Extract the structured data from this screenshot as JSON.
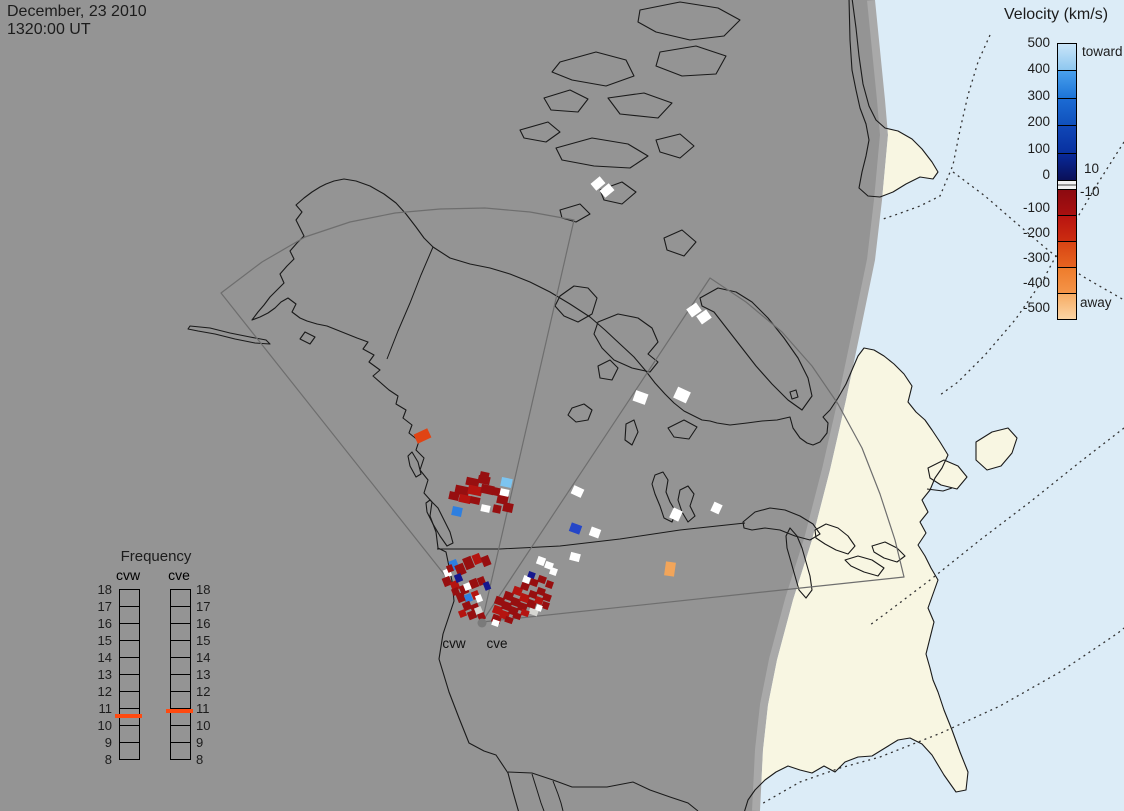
{
  "title_block": {
    "date": "December, 23 2010",
    "time": "1320:00 UT"
  },
  "velocity_legend": {
    "title": "Velocity (km/s)",
    "toward_label": "toward",
    "away_label": "away",
    "gap_upper_label": "10",
    "gap_lower_label": "-10",
    "ticks": [
      "500",
      "400",
      "300",
      "200",
      "100",
      "0",
      "-100",
      "-200",
      "-300",
      "-400",
      "-500"
    ],
    "toward_segments": [
      [
        "#c9e5f9",
        "#8ec7ef"
      ],
      [
        "#49a0ec",
        "#1c74d8"
      ],
      [
        "#1b6bd3",
        "#1050bc"
      ],
      [
        "#1047b7",
        "#08309f"
      ],
      [
        "#082a9a",
        "#0a1058"
      ]
    ],
    "away_segments": [
      [
        "#8c0a10",
        "#a81010"
      ],
      [
        "#b81410",
        "#cc2c10"
      ],
      [
        "#d84414",
        "#e66420"
      ],
      [
        "#ee7c2c",
        "#f49448"
      ],
      [
        "#f7ac64",
        "#fbd4a4"
      ]
    ],
    "gap_color": "#f2f2f2",
    "gap_line_color": "#9a9a9a"
  },
  "frequency_legend": {
    "title": "Frequency",
    "columns": [
      {
        "label": "cvw",
        "marker_value": 10.55
      },
      {
        "label": "cve",
        "marker_value": 10.8
      }
    ],
    "ticks": [
      "18",
      "17",
      "16",
      "15",
      "14",
      "13",
      "12",
      "11",
      "10",
      "9",
      "8"
    ],
    "scale_min": 8,
    "scale_max": 18,
    "marker_color": "#ff4a10"
  },
  "radar_sites": {
    "west_label": "cvw",
    "east_label": "cve"
  },
  "map_colors": {
    "night": "#949494",
    "twilight": "#a9a9a9",
    "ocean_day": "#dcecf7",
    "land_day": "#f8f6e2",
    "coast": "#1a1a1a",
    "fov": "#6e6e6e",
    "dotted": "#333333",
    "radar_dot": "#7a7a7a"
  },
  "cell_palette": {
    "dk": "#970f10",
    "rd": "#b51410",
    "wh": "#ffffff",
    "sv": "#d6d6d2",
    "lb": "#7cc4f0",
    "bb": "#2e7fe0",
    "db": "#2546c8",
    "nv": "#16188e",
    "or": "#f2a55a",
    "ro": "#e04414"
  },
  "echo_cells": [
    [
      466,
      478,
      13,
      8,
      "dk",
      12
    ],
    [
      478,
      476,
      12,
      8,
      "dk",
      12
    ],
    [
      455,
      486,
      14,
      9,
      "dk",
      12
    ],
    [
      468,
      486,
      14,
      9,
      "rd",
      12
    ],
    [
      481,
      485,
      13,
      9,
      "dk",
      12
    ],
    [
      493,
      488,
      10,
      8,
      "dk",
      12
    ],
    [
      449,
      492,
      10,
      8,
      "dk",
      12
    ],
    [
      459,
      495,
      12,
      8,
      "rd",
      12
    ],
    [
      470,
      497,
      10,
      7,
      "dk",
      12
    ],
    [
      497,
      495,
      11,
      9,
      "dk",
      12
    ],
    [
      503,
      503,
      10,
      9,
      "dk",
      12
    ],
    [
      480,
      472,
      9,
      7,
      "dk",
      12
    ],
    [
      501,
      478,
      11,
      9,
      "lb",
      12
    ],
    [
      500,
      489,
      9,
      7,
      "wh",
      12
    ],
    [
      452,
      507,
      10,
      9,
      "bb",
      12
    ],
    [
      481,
      505,
      9,
      7,
      "wh",
      12
    ],
    [
      493,
      505,
      8,
      8,
      "dk",
      12
    ],
    [
      415,
      431,
      15,
      10,
      "ro",
      -25
    ],
    [
      592,
      179,
      12,
      9,
      "wh",
      -40
    ],
    [
      601,
      186,
      12,
      9,
      "wh",
      -40
    ],
    [
      688,
      305,
      12,
      10,
      "wh",
      -35
    ],
    [
      698,
      312,
      12,
      10,
      "wh",
      -35
    ],
    [
      634,
      392,
      13,
      11,
      "wh",
      20
    ],
    [
      675,
      389,
      14,
      12,
      "wh",
      25
    ],
    [
      572,
      487,
      11,
      9,
      "wh",
      25
    ],
    [
      570,
      524,
      11,
      9,
      "db",
      20
    ],
    [
      590,
      528,
      10,
      9,
      "wh",
      20
    ],
    [
      570,
      553,
      10,
      8,
      "wh",
      15
    ],
    [
      671,
      509,
      10,
      11,
      "wh",
      25
    ],
    [
      712,
      503,
      9,
      10,
      "wh",
      25
    ],
    [
      665,
      562,
      10,
      14,
      "or",
      8
    ],
    [
      450,
      560,
      8,
      10,
      "bb",
      -22
    ],
    [
      444,
      569,
      7,
      8,
      "wh",
      -22
    ],
    [
      456,
      564,
      9,
      11,
      "dk",
      -22
    ],
    [
      464,
      557,
      9,
      12,
      "dk",
      -22
    ],
    [
      473,
      554,
      8,
      10,
      "rd",
      -22
    ],
    [
      482,
      556,
      8,
      10,
      "dk",
      -22
    ],
    [
      443,
      577,
      8,
      9,
      "dk",
      -22
    ],
    [
      451,
      581,
      8,
      9,
      "rd",
      -22
    ],
    [
      455,
      574,
      7,
      8,
      "nv",
      -22
    ],
    [
      460,
      585,
      8,
      9,
      "dk",
      -22
    ],
    [
      464,
      583,
      7,
      7,
      "wh",
      -22
    ],
    [
      470,
      579,
      8,
      9,
      "dk",
      -22
    ],
    [
      478,
      577,
      7,
      8,
      "dk",
      -22
    ],
    [
      484,
      582,
      6,
      8,
      "nv",
      -22
    ],
    [
      457,
      593,
      8,
      9,
      "dk",
      -22
    ],
    [
      465,
      594,
      7,
      8,
      "bb",
      -22
    ],
    [
      472,
      591,
      7,
      8,
      "rd",
      -22
    ],
    [
      476,
      595,
      6,
      7,
      "wh",
      -22
    ],
    [
      463,
      602,
      8,
      8,
      "dk",
      -22
    ],
    [
      471,
      604,
      8,
      8,
      "dk",
      -22
    ],
    [
      459,
      610,
      7,
      7,
      "rd",
      -22
    ],
    [
      468,
      611,
      8,
      8,
      "dk",
      -22
    ],
    [
      475,
      607,
      7,
      7,
      "sv",
      -22
    ],
    [
      478,
      613,
      7,
      7,
      "dk",
      -22
    ],
    [
      452,
      588,
      7,
      7,
      "dk",
      -22
    ],
    [
      447,
      565,
      6,
      7,
      "dk",
      -22
    ],
    [
      492,
      615,
      9,
      8,
      "dk",
      20
    ],
    [
      500,
      611,
      9,
      8,
      "rd",
      20
    ],
    [
      509,
      607,
      9,
      8,
      "dk",
      20
    ],
    [
      518,
      603,
      9,
      8,
      "dk",
      20
    ],
    [
      527,
      600,
      9,
      8,
      "dk",
      20
    ],
    [
      535,
      597,
      8,
      7,
      "rd",
      20
    ],
    [
      543,
      594,
      8,
      7,
      "dk",
      20
    ],
    [
      493,
      606,
      9,
      8,
      "rd",
      20
    ],
    [
      502,
      602,
      9,
      8,
      "dk",
      20
    ],
    [
      511,
      598,
      9,
      8,
      "dk",
      20
    ],
    [
      520,
      594,
      9,
      8,
      "rd",
      20
    ],
    [
      529,
      591,
      8,
      7,
      "dk",
      20
    ],
    [
      537,
      588,
      8,
      7,
      "dk",
      20
    ],
    [
      495,
      597,
      9,
      8,
      "dk",
      20
    ],
    [
      504,
      592,
      9,
      8,
      "dk",
      20
    ],
    [
      513,
      587,
      9,
      8,
      "rd",
      20
    ],
    [
      521,
      583,
      8,
      7,
      "dk",
      20
    ],
    [
      530,
      579,
      8,
      7,
      "dk",
      20
    ],
    [
      523,
      576,
      7,
      7,
      "wh",
      20
    ],
    [
      528,
      572,
      7,
      6,
      "nv",
      20
    ],
    [
      538,
      576,
      8,
      7,
      "dk",
      20
    ],
    [
      546,
      581,
      7,
      7,
      "dk",
      20
    ],
    [
      537,
      557,
      8,
      8,
      "wh",
      20
    ],
    [
      545,
      562,
      8,
      7,
      "wh",
      20
    ],
    [
      550,
      568,
      7,
      7,
      "wh",
      20
    ],
    [
      529,
      609,
      9,
      6,
      "sv",
      20
    ],
    [
      542,
      602,
      7,
      7,
      "dk",
      20
    ],
    [
      536,
      605,
      6,
      6,
      "wh",
      20
    ],
    [
      492,
      620,
      7,
      6,
      "wh",
      20
    ],
    [
      505,
      617,
      8,
      6,
      "dk",
      20
    ],
    [
      513,
      613,
      8,
      6,
      "dk",
      20
    ],
    [
      521,
      610,
      8,
      6,
      "rd",
      20
    ]
  ]
}
